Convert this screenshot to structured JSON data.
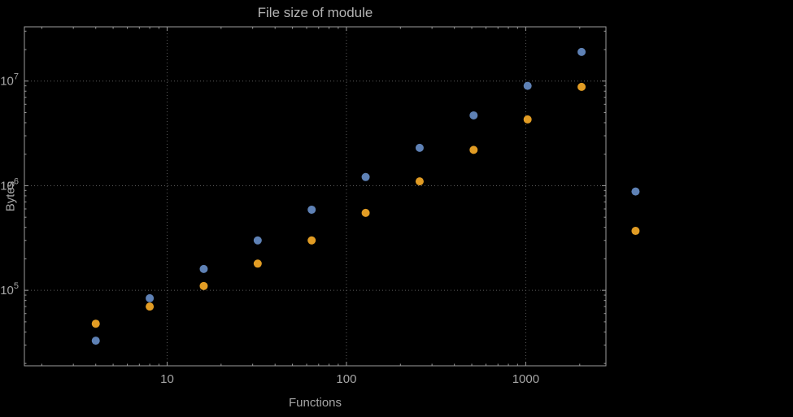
{
  "chart_data": {
    "type": "scatter",
    "title": "File size of module",
    "xlabel": "Functions",
    "ylabel": "Bytes",
    "x_scale": "log",
    "y_scale": "log",
    "grid": true,
    "legend": "none",
    "x": [
      4,
      8,
      16,
      32,
      64,
      128,
      256,
      512,
      1024,
      2048,
      4096
    ],
    "series": [
      {
        "name": "blue",
        "color": "#5e81b5",
        "values": [
          33000,
          84000,
          160000,
          300000,
          590000,
          1210000,
          2300000,
          4700000,
          9000000,
          19000000,
          880000
        ]
      },
      {
        "name": "orange",
        "color": "#e19c24",
        "values": [
          48000,
          70000,
          110000,
          180000,
          300000,
          550000,
          1100000,
          2200000,
          4300000,
          8800000,
          370000
        ]
      }
    ],
    "x_ticks": [
      10,
      100,
      1000
    ],
    "y_ticks": [
      100000,
      1000000,
      10000000
    ],
    "x_range": [
      1.6,
      2800
    ],
    "y_range": [
      19000,
      33000000
    ]
  },
  "style": {
    "background": "#000000",
    "title_color": "#b3b3b3",
    "text_color": "#a6a6a6",
    "frame_color": "#9c9c9c",
    "grid_color": "#5c5c5c",
    "point_radius": 5
  }
}
